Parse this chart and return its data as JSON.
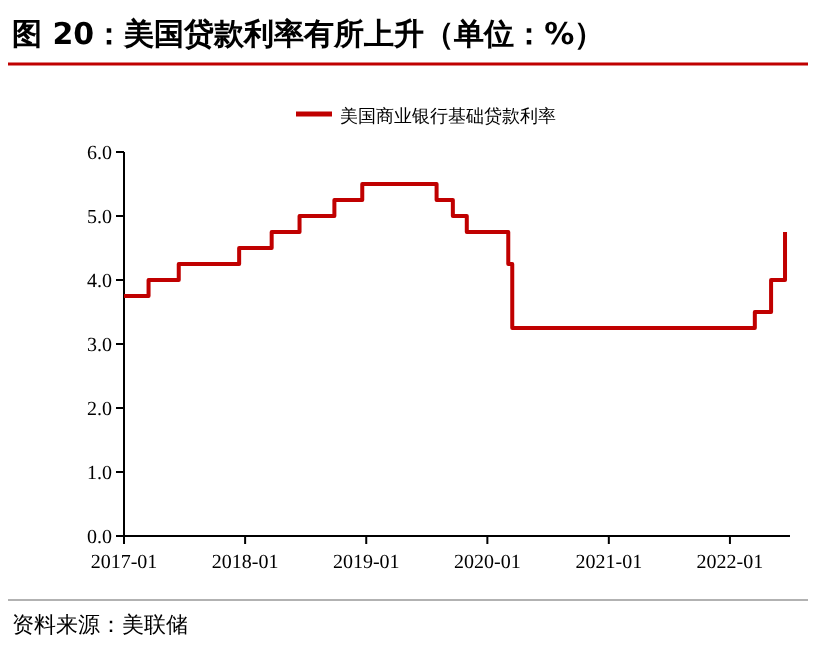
{
  "chart_data": {
    "type": "step",
    "title": "图 20：美国贷款利率有所上升（单位：%）",
    "annotations": [
      "资料来源：美联储"
    ],
    "x": [
      "2017-01-01",
      "2017-03-16",
      "2017-06-15",
      "2017-12-14",
      "2018-03-22",
      "2018-06-14",
      "2018-09-27",
      "2018-12-20",
      "2019-08-01",
      "2019-09-19",
      "2019-10-31",
      "2020-03-04",
      "2020-03-16",
      "2022-03-17",
      "2022-05-05",
      "2022-06-16"
    ],
    "series": [
      {
        "name": "美国商业银行基础贷款利率",
        "color": "#c00000",
        "values": [
          3.75,
          4.0,
          4.25,
          4.5,
          4.75,
          5.0,
          5.25,
          5.5,
          5.25,
          5.0,
          4.75,
          4.25,
          3.25,
          3.5,
          4.0,
          4.75
        ]
      }
    ],
    "xlim": [
      "2017-01",
      "2022-07"
    ],
    "xticks": [
      "2017-01",
      "2018-01",
      "2019-01",
      "2020-01",
      "2021-01",
      "2022-01"
    ],
    "ylim": [
      0,
      6
    ],
    "yticks": [
      {
        "value": 0,
        "label": "0.0"
      },
      {
        "value": 1,
        "label": "1.0"
      },
      {
        "value": 2,
        "label": "2.0"
      },
      {
        "value": 3,
        "label": "3.0"
      },
      {
        "value": 4,
        "label": "4.0"
      },
      {
        "value": 5,
        "label": "5.0"
      },
      {
        "value": 6,
        "label": "6.0"
      }
    ],
    "legend": "top",
    "grid": false
  }
}
